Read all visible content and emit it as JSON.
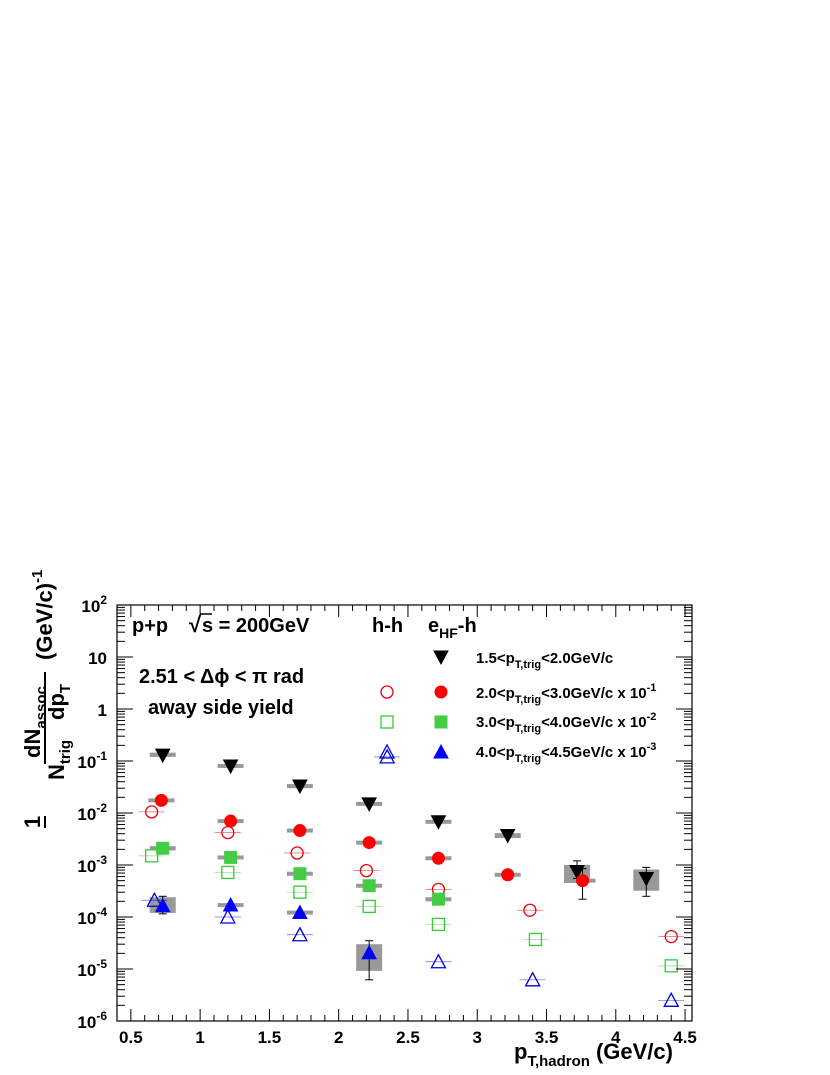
{
  "chart_data": {
    "type": "scatter",
    "xlabel": "p",
    "xlabel_sub": "T,hadron",
    "xlabel_unit": "(GeV/c)",
    "xlim": [
      0.4,
      4.55
    ],
    "ylim": [
      1e-06,
      100
    ],
    "yscale": "log",
    "grid": false,
    "x_ticks": [
      {
        "v": 0.5,
        "label": "0.5"
      },
      {
        "v": 1,
        "label": "1"
      },
      {
        "v": 1.5,
        "label": "1.5"
      },
      {
        "v": 2,
        "label": "2"
      },
      {
        "v": 2.5,
        "label": "2.5"
      },
      {
        "v": 3,
        "label": "3"
      },
      {
        "v": 3.5,
        "label": "3.5"
      },
      {
        "v": 4,
        "label": "4"
      },
      {
        "v": 4.5,
        "label": "4.5"
      }
    ],
    "y_ticks": [
      {
        "v": 100,
        "mant": "10",
        "exp": "2"
      },
      {
        "v": 10,
        "mant": "10",
        "exp": ""
      },
      {
        "v": 1,
        "mant": "1",
        "exp": ""
      },
      {
        "v": 0.1,
        "mant": "10",
        "exp": "-1"
      },
      {
        "v": 0.01,
        "mant": "10",
        "exp": "-2"
      },
      {
        "v": 0.001,
        "mant": "10",
        "exp": "-3"
      },
      {
        "v": 0.0001,
        "mant": "10",
        "exp": "-4"
      },
      {
        "v": 1e-05,
        "mant": "10",
        "exp": "-5"
      },
      {
        "v": 1e-06,
        "mant": "10",
        "exp": "-6"
      }
    ],
    "ylabel": {
      "one": "1",
      "dn": "dN",
      "dn_sub": "assoc",
      "n": "N",
      "n_sub": "trig",
      "dp": "dp",
      "dp_sub": "T",
      "unit": "(GeV/c)",
      "unit_sup": "-1"
    },
    "annotations": {
      "system": "p+p",
      "sqrt_symbol": "√",
      "s_value": "s = 200GeV",
      "hh": "h-h",
      "ehf": "e",
      "ehf_sub": "HF",
      "ehf_suffix": "-h",
      "dphi": "2.51 < Δϕ < π rad",
      "away": "away side yield"
    },
    "legend_labels": [
      {
        "pre": "1.5<p",
        "sub": "T,trig",
        "post": "<2.0GeV/c",
        "exp": ""
      },
      {
        "pre": "2.0<p",
        "sub": "T,trig",
        "post": "<3.0GeV/c x 10",
        "exp": "-1"
      },
      {
        "pre": "3.0<p",
        "sub": "T,trig",
        "post": "<4.0GeV/c x 10",
        "exp": "-2"
      },
      {
        "pre": "4.0<p",
        "sub": "T,trig",
        "post": "<4.5GeV/c x 10",
        "exp": "-3"
      }
    ],
    "series": [
      {
        "type": "hh",
        "marker": "circle-open",
        "color": "#e8000b",
        "points": [
          [
            0.65,
            0.0105
          ],
          [
            1.2,
            0.0042
          ],
          [
            1.7,
            0.0017
          ],
          [
            2.2,
            0.00078
          ],
          [
            2.72,
            0.00034
          ],
          [
            3.38,
            0.000135
          ],
          [
            4.4,
            4.2e-05
          ]
        ]
      },
      {
        "type": "hh",
        "marker": "square-open",
        "color": "#33cc33",
        "points": [
          [
            0.65,
            0.0015
          ],
          [
            1.2,
            0.00072
          ],
          [
            1.72,
            0.0003
          ],
          [
            2.22,
            0.00016
          ],
          [
            2.72,
            7.2e-05
          ],
          [
            3.42,
            3.7e-05
          ],
          [
            4.4,
            1.15e-05
          ]
        ]
      },
      {
        "type": "hh",
        "marker": "triangle-open",
        "color": "#0000dd",
        "points": [
          [
            0.67,
            0.00021
          ],
          [
            1.2,
            0.0001
          ],
          [
            1.72,
            4.55e-05
          ],
          [
            2.35,
            0.12
          ],
          [
            2.72,
            1.38e-05
          ],
          [
            3.4,
            6.2e-06
          ],
          [
            4.4,
            2.5e-06
          ]
        ]
      },
      {
        "type": "ehf",
        "marker": "triangle-down-filled",
        "color": "#000000",
        "points": [
          [
            0.73,
            0.13
          ],
          [
            1.22,
            0.08
          ],
          [
            1.72,
            0.033
          ],
          [
            2.22,
            0.015
          ],
          [
            2.72,
            0.0068
          ],
          [
            3.22,
            0.0037
          ],
          [
            3.72,
            0.00075
          ],
          [
            4.22,
            0.00055
          ]
        ],
        "errors": [
          [
            0.13,
            0.13
          ],
          [
            0.08,
            0.08
          ],
          [
            0.033,
            0.033
          ],
          [
            0.015,
            0.015
          ],
          [
            0.0068,
            0.0068
          ],
          [
            0.0037,
            0.0037
          ],
          [
            0.00055,
            0.0012
          ],
          [
            0.00025,
            0.0009
          ]
        ],
        "sys": [
          [
            0.12,
            0.145
          ],
          [
            0.074,
            0.087
          ],
          [
            0.03,
            0.036
          ],
          [
            0.0138,
            0.0162
          ],
          [
            0.0062,
            0.0074
          ],
          [
            0.0033,
            0.0041
          ],
          [
            0.00045,
            0.001
          ],
          [
            0.00032,
            0.00082
          ]
        ]
      },
      {
        "type": "ehf",
        "marker": "circle-filled",
        "color": "#ff0000",
        "points": [
          [
            0.72,
            0.0175
          ],
          [
            1.22,
            0.007
          ],
          [
            1.72,
            0.0046
          ],
          [
            2.22,
            0.0027
          ],
          [
            2.72,
            0.00135
          ],
          [
            3.22,
            0.00065
          ],
          [
            3.76,
            0.0005
          ]
        ],
        "errors": [
          [
            0.0175,
            0.0175
          ],
          [
            0.007,
            0.007
          ],
          [
            0.0046,
            0.0046
          ],
          [
            0.0027,
            0.0027
          ],
          [
            0.00135,
            0.00135
          ],
          [
            0.00065,
            0.00065
          ],
          [
            0.00022,
            0.00085
          ]
        ],
        "sys": [
          [
            0.0165,
            0.0185
          ],
          [
            0.0066,
            0.0074
          ],
          [
            0.0043,
            0.0049
          ],
          [
            0.0025,
            0.0029
          ],
          [
            0.00126,
            0.00144
          ],
          [
            0.0006,
            0.0007
          ],
          [
            0.00048,
            0.00052
          ]
        ]
      },
      {
        "type": "ehf",
        "marker": "square-filled",
        "color": "#44cc44",
        "points": [
          [
            0.73,
            0.0021
          ],
          [
            1.22,
            0.0014
          ],
          [
            1.72,
            0.00068
          ],
          [
            2.22,
            0.0004
          ],
          [
            2.72,
            0.00022
          ]
        ],
        "errors": [
          [
            0.0021,
            0.0021
          ],
          [
            0.0014,
            0.0014
          ],
          [
            0.00068,
            0.00068
          ],
          [
            0.0004,
            0.0004
          ],
          [
            0.00022,
            0.00022
          ]
        ],
        "sys": [
          [
            0.0019,
            0.0023
          ],
          [
            0.0013,
            0.0015
          ],
          [
            0.00063,
            0.00073
          ],
          [
            0.00037,
            0.00043
          ],
          [
            0.0002,
            0.00024
          ]
        ]
      },
      {
        "type": "ehf",
        "marker": "triangle-filled",
        "color": "#0000ff",
        "points": [
          [
            0.73,
            0.000165
          ],
          [
            1.22,
            0.00017
          ],
          [
            1.72,
            0.000122
          ],
          [
            2.22,
            2.05e-05
          ]
        ],
        "errors": [
          [
            0.000115,
            0.00025
          ],
          [
            0.00017,
            0.00017
          ],
          [
            0.000122,
            0.000122
          ],
          [
            6.2e-06,
            3.5e-05
          ]
        ],
        "sys": [
          [
            0.00012,
            0.00024
          ],
          [
            0.000156,
            0.000184
          ],
          [
            0.000112,
            0.000132
          ],
          [
            9.2e-06,
            3e-05
          ]
        ]
      }
    ],
    "legend": [
      {
        "hh_marker": "",
        "ehf_marker": "triangle-down-filled",
        "ehf_color": "#000000"
      },
      {
        "hh_marker": "circle-open",
        "hh_color": "#e8000b",
        "ehf_marker": "circle-filled",
        "ehf_color": "#ff0000"
      },
      {
        "hh_marker": "square-open",
        "hh_color": "#33cc33",
        "ehf_marker": "square-filled",
        "ehf_color": "#44cc44"
      },
      {
        "hh_marker": "triangle-open",
        "hh_color": "#0000dd",
        "ehf_marker": "triangle-filled",
        "ehf_color": "#0000ff"
      }
    ]
  }
}
